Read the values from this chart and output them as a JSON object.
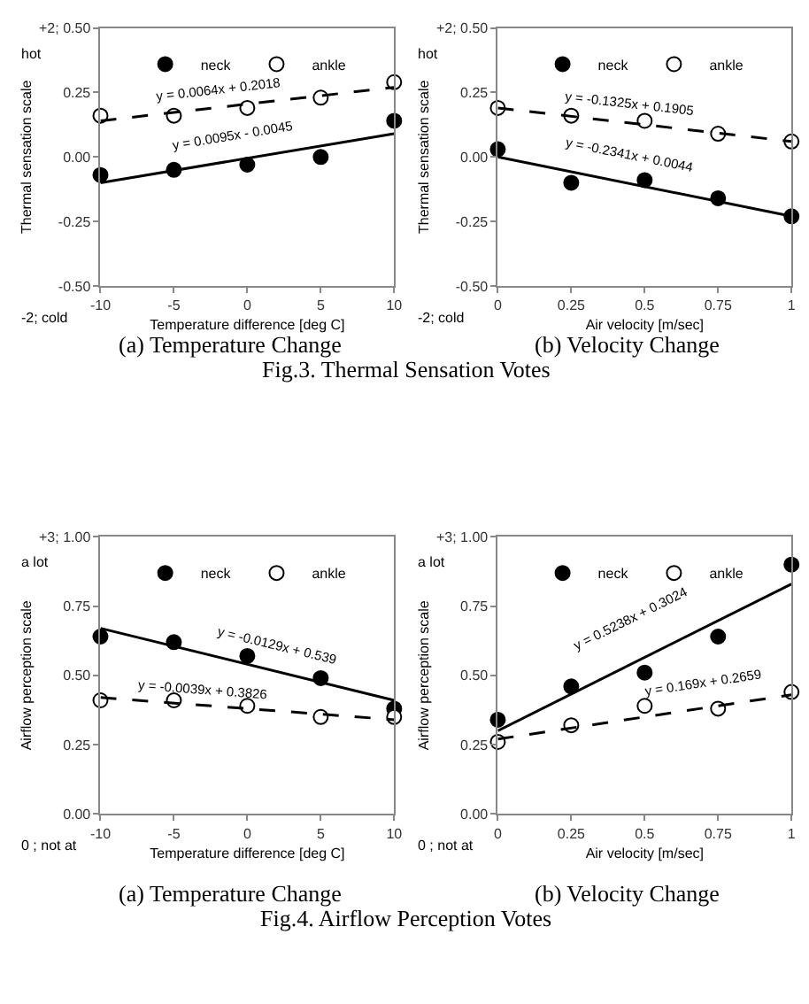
{
  "chart_data": [
    {
      "type": "scatter",
      "title": "(a) Temperature Change",
      "xlabel": "Temperature difference [deg C]",
      "ylabel": "Thermal sensation scale",
      "x": [
        -10,
        -5,
        0,
        5,
        10
      ],
      "marker": "circle",
      "legend": "top",
      "grid": false,
      "series": [
        {
          "name": "neck",
          "color": "#000000",
          "values": [
            -0.07,
            -0.05,
            -0.03,
            0.0,
            0.14
          ]
        },
        {
          "name": "ankle",
          "color": "#ffffff",
          "values": [
            0.16,
            0.16,
            0.19,
            0.23,
            0.29
          ]
        },
        {
          "type": "line",
          "marker": "none",
          "color": "#000000",
          "line_style": "solid",
          "x": [
            -10,
            10
          ],
          "values": [
            -0.1,
            0.09
          ]
        },
        {
          "type": "line",
          "marker": "none",
          "color": "#000000",
          "line_style": "dashed",
          "x": [
            -10,
            10
          ],
          "values": [
            0.14,
            0.27
          ]
        }
      ],
      "xlim": [
        -10,
        10
      ],
      "xticks": [
        -10,
        -5,
        0,
        5,
        10
      ],
      "ylim": [
        -0.5,
        0.5
      ],
      "yticks": [
        {
          "value": -0.5,
          "label": "-0.50"
        },
        {
          "value": -0.25,
          "label": "-0.25"
        },
        {
          "value": 0,
          "label": "0.00"
        },
        {
          "value": 0.25,
          "label": "0.25"
        },
        {
          "value": 0.5,
          "label": "+2; 0.50"
        }
      ],
      "annotations": [
        {
          "text": "y = 0.0095x - 0.0045",
          "x": -1,
          "y": 0.0
        },
        {
          "text": "y = 0.0064x + 0.2018",
          "x": -2,
          "y": 0.19
        },
        "hot",
        "-2; cold",
        "Fig.3. Thermal Sensation Votes"
      ]
    },
    {
      "type": "scatter",
      "title": "(b) Velocity Change",
      "xlabel": "Air velocity [m/sec]",
      "ylabel": "Thermal sensation scale",
      "x": [
        0,
        0.25,
        0.5,
        0.75,
        1
      ],
      "marker": "circle",
      "legend": "top",
      "grid": false,
      "series": [
        {
          "name": "neck",
          "color": "#000000",
          "values": [
            0.03,
            -0.1,
            -0.09,
            -0.16,
            -0.23
          ]
        },
        {
          "name": "ankle",
          "color": "#ffffff",
          "values": [
            0.19,
            0.16,
            0.14,
            0.09,
            0.06
          ]
        },
        {
          "type": "line",
          "marker": "none",
          "color": "#000000",
          "line_style": "solid",
          "x": [
            0,
            1
          ],
          "values": [
            0.0,
            -0.23
          ]
        },
        {
          "type": "line",
          "marker": "none",
          "color": "#000000",
          "line_style": "dashed",
          "x": [
            0,
            1
          ],
          "values": [
            0.19,
            0.06
          ]
        }
      ],
      "xlim": [
        0,
        1
      ],
      "xticks": [
        0,
        0.25,
        0.5,
        0.75,
        1
      ],
      "ylim": [
        -0.5,
        0.5
      ],
      "yticks": [
        {
          "value": -0.5,
          "label": "-0.50"
        },
        {
          "value": -0.25,
          "label": "-0.25"
        },
        {
          "value": 0,
          "label": "0.00"
        },
        {
          "value": 0.25,
          "label": "0.25"
        },
        {
          "value": 0.5,
          "label": "+2; 0.50"
        }
      ],
      "annotations": [
        {
          "text": "y = -0.2341x + 0.0044",
          "x": 0.45,
          "y": -0.09
        },
        {
          "text": "y = -0.1325x + 0.1905",
          "x": 0.45,
          "y": 0.13
        },
        "hot",
        "-2; cold"
      ]
    },
    {
      "type": "scatter",
      "title": "(a) Temperature Change",
      "xlabel": "Temperature difference [deg C]",
      "ylabel": "Airflow perception scale",
      "x": [
        -10,
        -5,
        0,
        5,
        10
      ],
      "marker": "circle",
      "legend": "top",
      "grid": false,
      "series": [
        {
          "name": "neck",
          "color": "#000000",
          "values": [
            0.64,
            0.62,
            0.57,
            0.49,
            0.38
          ]
        },
        {
          "name": "ankle",
          "color": "#ffffff",
          "values": [
            0.41,
            0.41,
            0.39,
            0.35,
            0.35
          ]
        },
        {
          "type": "line",
          "marker": "none",
          "color": "#000000",
          "line_style": "solid",
          "x": [
            -10,
            10
          ],
          "values": [
            0.67,
            0.41
          ]
        },
        {
          "type": "line",
          "marker": "none",
          "color": "#000000",
          "line_style": "dashed",
          "x": [
            -10,
            10
          ],
          "values": [
            0.42,
            0.34
          ]
        }
      ],
      "xlim": [
        -10,
        10
      ],
      "xticks": [
        -10,
        -5,
        0,
        5,
        10
      ],
      "ylim": [
        0,
        1
      ],
      "yticks": [
        {
          "value": 0,
          "label": "0.00"
        },
        {
          "value": 0.25,
          "label": "0.25"
        },
        {
          "value": 0.5,
          "label": "0.50"
        },
        {
          "value": 0.75,
          "label": "0.75"
        },
        {
          "value": 1,
          "label": "+3; 1.00"
        }
      ],
      "annotations": [
        {
          "text": "y = -0.0129x + 0.539",
          "x": 2,
          "y": 0.51
        },
        {
          "text": "y = -0.0039x + 0.3826",
          "x": -3,
          "y": 0.39
        },
        "a lot",
        "0 ; not at",
        "Fig.4. Airflow Perception Votes"
      ]
    },
    {
      "type": "scatter",
      "title": "(b) Velocity Change",
      "xlabel": "Air velocity [m/sec]",
      "ylabel": "Airflow perception scale",
      "x": [
        0,
        0.25,
        0.5,
        0.75,
        1
      ],
      "marker": "circle",
      "legend": "top",
      "grid": false,
      "series": [
        {
          "name": "neck",
          "color": "#000000",
          "values": [
            0.34,
            0.46,
            0.51,
            0.64,
            0.9
          ]
        },
        {
          "name": "ankle",
          "color": "#ffffff",
          "values": [
            0.26,
            0.32,
            0.39,
            0.38,
            0.44
          ]
        },
        {
          "type": "line",
          "marker": "none",
          "color": "#000000",
          "line_style": "solid",
          "x": [
            0,
            1
          ],
          "values": [
            0.3,
            0.83
          ]
        },
        {
          "type": "line",
          "marker": "none",
          "color": "#000000",
          "line_style": "dashed",
          "x": [
            0,
            1
          ],
          "values": [
            0.27,
            0.43
          ]
        }
      ],
      "xlim": [
        0,
        1
      ],
      "xticks": [
        0,
        0.25,
        0.5,
        0.75,
        1
      ],
      "ylim": [
        0,
        1
      ],
      "yticks": [
        {
          "value": 0,
          "label": "0.00"
        },
        {
          "value": 0.25,
          "label": "0.25"
        },
        {
          "value": 0.5,
          "label": "0.50"
        },
        {
          "value": 0.75,
          "label": "0.75"
        },
        {
          "value": 1,
          "label": "+3; 1.00"
        }
      ],
      "annotations": [
        {
          "text": "y = 0.5238x + 0.3024",
          "x": 0.45,
          "y": 0.56
        },
        {
          "text": "y = 0.169x + 0.2659",
          "x": 0.7,
          "y": 0.4
        },
        "a lot",
        "0 ; not at"
      ]
    }
  ]
}
